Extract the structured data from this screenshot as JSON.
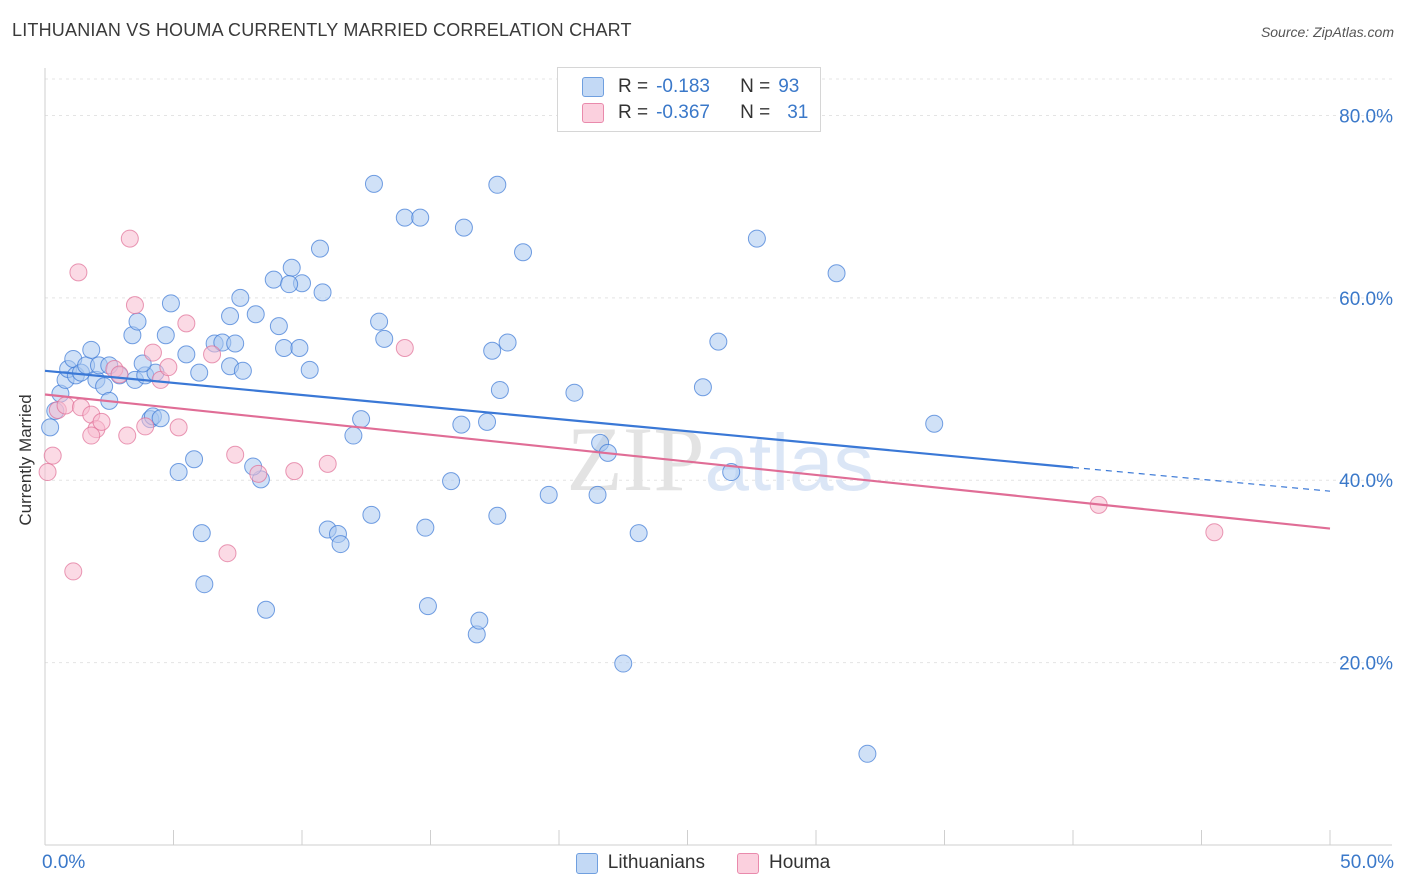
{
  "header": {
    "title": "LITHUANIAN VS HOUMA CURRENTLY MARRIED CORRELATION CHART",
    "source": "Source: ZipAtlas.com"
  },
  "stats": {
    "rows": [
      {
        "r_label": "R =",
        "r_value": "-0.183",
        "n_label": "N =",
        "n_value": "93",
        "color": "#a9c8f0"
      },
      {
        "r_label": "R =",
        "r_value": "-0.367",
        "n_label": "N =",
        "n_value": "31",
        "color": "#f7bcd0"
      }
    ]
  },
  "legend": {
    "items": [
      {
        "label": "Lithuanians",
        "color": "#a9c8f0"
      },
      {
        "label": "Houma",
        "color": "#f7bcd0"
      }
    ]
  },
  "chart_data": {
    "type": "scatter",
    "title": "LITHUANIAN VS HOUMA CURRENTLY MARRIED CORRELATION CHART",
    "ylabel": "Currently Married",
    "xlabel": "",
    "xlim": [
      0,
      50
    ],
    "ylim": [
      0,
      84
    ],
    "x_tick_labels": [
      "0.0%",
      "50.0%"
    ],
    "y_tick_labels": [
      "20.0%",
      "40.0%",
      "60.0%",
      "80.0%"
    ],
    "y_ticks": [
      20,
      40,
      60,
      80
    ],
    "grid": true,
    "legend_position": "bottom",
    "watermark": "ZIPatlas",
    "series": [
      {
        "name": "Lithuanians",
        "color": "#3a78d6",
        "fill": "#a9c8f0",
        "trend": {
          "x0": 0,
          "y0": 52.0,
          "x1": 40,
          "y1": 41.4,
          "dash_to_x": 50,
          "dash_to_y": 38.8
        },
        "points": [
          [
            0.2,
            45.8
          ],
          [
            0.4,
            47.6
          ],
          [
            0.6,
            49.5
          ],
          [
            0.8,
            51.0
          ],
          [
            0.9,
            52.2
          ],
          [
            1.1,
            53.3
          ],
          [
            1.2,
            51.5
          ],
          [
            1.4,
            51.8
          ],
          [
            1.6,
            52.6
          ],
          [
            1.8,
            54.3
          ],
          [
            2.0,
            51.0
          ],
          [
            2.3,
            50.3
          ],
          [
            2.5,
            48.7
          ],
          [
            2.9,
            51.5
          ],
          [
            2.1,
            52.6
          ],
          [
            2.5,
            52.6
          ],
          [
            3.4,
            55.9
          ],
          [
            3.5,
            51.0
          ],
          [
            3.9,
            51.5
          ],
          [
            3.6,
            57.4
          ],
          [
            4.3,
            51.8
          ],
          [
            4.1,
            46.7
          ],
          [
            3.8,
            52.8
          ],
          [
            4.2,
            47.0
          ],
          [
            4.5,
            46.8
          ],
          [
            4.7,
            55.9
          ],
          [
            4.9,
            59.4
          ],
          [
            5.5,
            53.8
          ],
          [
            5.8,
            42.3
          ],
          [
            5.2,
            40.9
          ],
          [
            6.0,
            51.8
          ],
          [
            6.1,
            34.2
          ],
          [
            6.6,
            55.0
          ],
          [
            6.9,
            55.1
          ],
          [
            7.2,
            52.5
          ],
          [
            7.6,
            60.0
          ],
          [
            7.7,
            52.0
          ],
          [
            8.2,
            58.2
          ],
          [
            8.4,
            40.1
          ],
          [
            8.1,
            41.5
          ],
          [
            6.2,
            28.6
          ],
          [
            8.6,
            25.8
          ],
          [
            8.9,
            62.0
          ],
          [
            9.1,
            56.9
          ],
          [
            9.3,
            54.5
          ],
          [
            9.6,
            63.3
          ],
          [
            9.9,
            54.5
          ],
          [
            10.3,
            52.1
          ],
          [
            10.7,
            65.4
          ],
          [
            10.8,
            60.6
          ],
          [
            11.0,
            34.6
          ],
          [
            11.4,
            34.1
          ],
          [
            11.5,
            33.0
          ],
          [
            12.0,
            44.9
          ],
          [
            12.3,
            46.7
          ],
          [
            12.7,
            36.2
          ],
          [
            12.8,
            72.5
          ],
          [
            13.2,
            55.5
          ],
          [
            14.0,
            68.8
          ],
          [
            14.6,
            68.8
          ],
          [
            14.8,
            34.8
          ],
          [
            14.9,
            26.2
          ],
          [
            15.8,
            39.9
          ],
          [
            16.3,
            67.7
          ],
          [
            16.2,
            46.1
          ],
          [
            16.8,
            23.1
          ],
          [
            16.9,
            24.6
          ],
          [
            17.6,
            36.1
          ],
          [
            17.2,
            46.4
          ],
          [
            17.6,
            72.4
          ],
          [
            17.7,
            49.9
          ],
          [
            18.0,
            55.1
          ],
          [
            18.6,
            65.0
          ],
          [
            19.6,
            38.4
          ],
          [
            20.6,
            49.6
          ],
          [
            21.5,
            38.4
          ],
          [
            21.6,
            44.1
          ],
          [
            21.9,
            43.0
          ],
          [
            22.5,
            19.9
          ],
          [
            23.1,
            34.2
          ],
          [
            25.6,
            50.2
          ],
          [
            26.2,
            55.2
          ],
          [
            26.7,
            40.9
          ],
          [
            27.7,
            66.5
          ],
          [
            30.8,
            62.7
          ],
          [
            32.0,
            10.0
          ],
          [
            34.6,
            46.2
          ],
          [
            10.0,
            61.6
          ],
          [
            13.0,
            57.4
          ],
          [
            7.2,
            58.0
          ],
          [
            7.4,
            55.0
          ],
          [
            9.5,
            61.5
          ],
          [
            17.4,
            54.2
          ]
        ]
      },
      {
        "name": "Houma",
        "color": "#e06d96",
        "fill": "#f7bcd0",
        "trend": {
          "x0": 0,
          "y0": 49.4,
          "x1": 50,
          "y1": 34.7
        },
        "points": [
          [
            0.1,
            40.9
          ],
          [
            0.3,
            42.7
          ],
          [
            0.5,
            47.7
          ],
          [
            0.8,
            48.2
          ],
          [
            1.1,
            30.0
          ],
          [
            1.3,
            62.8
          ],
          [
            1.4,
            48.0
          ],
          [
            1.8,
            47.2
          ],
          [
            2.0,
            45.6
          ],
          [
            2.2,
            46.4
          ],
          [
            2.7,
            52.2
          ],
          [
            2.9,
            51.6
          ],
          [
            3.2,
            44.9
          ],
          [
            3.3,
            66.5
          ],
          [
            3.5,
            59.2
          ],
          [
            3.9,
            45.9
          ],
          [
            4.2,
            54.0
          ],
          [
            4.5,
            51.0
          ],
          [
            4.8,
            52.4
          ],
          [
            5.2,
            45.8
          ],
          [
            5.5,
            57.2
          ],
          [
            6.5,
            53.8
          ],
          [
            7.1,
            32.0
          ],
          [
            7.4,
            42.8
          ],
          [
            8.3,
            40.7
          ],
          [
            9.7,
            41.0
          ],
          [
            11.0,
            41.8
          ],
          [
            14.0,
            54.5
          ],
          [
            1.8,
            44.9
          ],
          [
            41.0,
            37.3
          ],
          [
            45.5,
            34.3
          ]
        ]
      }
    ]
  }
}
